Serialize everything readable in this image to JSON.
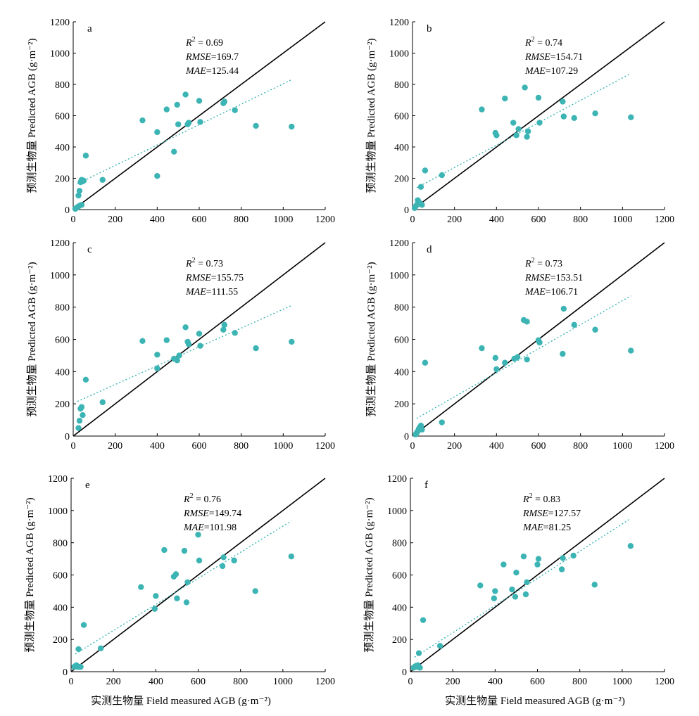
{
  "colors": {
    "points": "#3db4b4",
    "fit_line": "#3db4b4",
    "one_to_one": "#000000",
    "axes": "#000000"
  },
  "y_axis_label": "预测生物量 Predicted AGB (g·m⁻²)",
  "x_axis_label": "实测生物量 Field measured AGB (g·m⁻²)",
  "chart_data": [
    {
      "type": "scatter",
      "panel": "a",
      "stats": {
        "r2": "R² = 0.69",
        "rmse": "RMSE=169.7",
        "mae": "MAE=125.44"
      },
      "xlim": [
        0,
        1200
      ],
      "ylim": [
        0,
        1200
      ],
      "xticks": [
        0,
        200,
        400,
        600,
        800,
        1000,
        1200
      ],
      "yticks": [
        0,
        200,
        400,
        600,
        800,
        1000,
        1200
      ],
      "fit_line": [
        [
          20,
          165
        ],
        [
          1040,
          830
        ]
      ],
      "points": [
        [
          10,
          5
        ],
        [
          15,
          10
        ],
        [
          20,
          15
        ],
        [
          25,
          20
        ],
        [
          30,
          25
        ],
        [
          40,
          30
        ],
        [
          25,
          90
        ],
        [
          30,
          120
        ],
        [
          35,
          175
        ],
        [
          40,
          190
        ],
        [
          45,
          180
        ],
        [
          50,
          185
        ],
        [
          60,
          345
        ],
        [
          140,
          190
        ],
        [
          330,
          570
        ],
        [
          400,
          215
        ],
        [
          400,
          495
        ],
        [
          445,
          640
        ],
        [
          480,
          370
        ],
        [
          495,
          670
        ],
        [
          500,
          545
        ],
        [
          535,
          735
        ],
        [
          545,
          545
        ],
        [
          550,
          555
        ],
        [
          600,
          695
        ],
        [
          605,
          560
        ],
        [
          715,
          680
        ],
        [
          720,
          690
        ],
        [
          770,
          635
        ],
        [
          870,
          535
        ],
        [
          1040,
          530
        ]
      ]
    },
    {
      "type": "scatter",
      "panel": "b",
      "stats": {
        "r2": "R² = 0.74",
        "rmse": "RMSE=154.71",
        "mae": "MAE=107.29"
      },
      "xlim": [
        0,
        1200
      ],
      "ylim": [
        0,
        1200
      ],
      "xticks": [
        0,
        200,
        400,
        600,
        800,
        1000,
        1200
      ],
      "yticks": [
        0,
        200,
        400,
        600,
        800,
        1000,
        1200
      ],
      "fit_line": [
        [
          20,
          140
        ],
        [
          1040,
          870
        ]
      ],
      "points": [
        [
          10,
          10
        ],
        [
          15,
          20
        ],
        [
          20,
          30
        ],
        [
          25,
          60
        ],
        [
          30,
          50
        ],
        [
          35,
          40
        ],
        [
          40,
          35
        ],
        [
          45,
          30
        ],
        [
          40,
          145
        ],
        [
          60,
          250
        ],
        [
          140,
          220
        ],
        [
          330,
          640
        ],
        [
          395,
          490
        ],
        [
          400,
          475
        ],
        [
          440,
          710
        ],
        [
          480,
          555
        ],
        [
          495,
          475
        ],
        [
          505,
          515
        ],
        [
          535,
          780
        ],
        [
          545,
          465
        ],
        [
          550,
          500
        ],
        [
          600,
          715
        ],
        [
          605,
          555
        ],
        [
          715,
          690
        ],
        [
          720,
          595
        ],
        [
          770,
          585
        ],
        [
          870,
          615
        ],
        [
          1040,
          590
        ]
      ]
    },
    {
      "type": "scatter",
      "panel": "c",
      "stats": {
        "r2": "R² = 0.73",
        "rmse": "RMSE=155.75",
        "mae": "MAE=111.55"
      },
      "xlim": [
        0,
        1200
      ],
      "ylim": [
        0,
        1200
      ],
      "xticks": [
        0,
        200,
        400,
        600,
        800,
        1000,
        1200
      ],
      "yticks": [
        0,
        200,
        400,
        600,
        800,
        1000,
        1200
      ],
      "fit_line": [
        [
          20,
          215
        ],
        [
          1040,
          810
        ]
      ],
      "points": [
        [
          25,
          50
        ],
        [
          30,
          95
        ],
        [
          35,
          170
        ],
        [
          40,
          180
        ],
        [
          45,
          130
        ],
        [
          60,
          350
        ],
        [
          140,
          210
        ],
        [
          330,
          590
        ],
        [
          400,
          420
        ],
        [
          400,
          505
        ],
        [
          445,
          595
        ],
        [
          480,
          480
        ],
        [
          495,
          470
        ],
        [
          505,
          500
        ],
        [
          535,
          675
        ],
        [
          545,
          585
        ],
        [
          550,
          570
        ],
        [
          600,
          635
        ],
        [
          605,
          560
        ],
        [
          715,
          660
        ],
        [
          720,
          690
        ],
        [
          770,
          640
        ],
        [
          870,
          545
        ],
        [
          1040,
          585
        ]
      ]
    },
    {
      "type": "scatter",
      "panel": "d",
      "stats": {
        "r2": "R² = 0.73",
        "rmse": "RMSE=153.51",
        "mae": "MAE=106.71"
      },
      "xlim": [
        0,
        1200
      ],
      "ylim": [
        0,
        1200
      ],
      "xticks": [
        0,
        200,
        400,
        600,
        800,
        1000,
        1200
      ],
      "yticks": [
        0,
        200,
        400,
        600,
        800,
        1000,
        1200
      ],
      "fit_line": [
        [
          20,
          110
        ],
        [
          1040,
          870
        ]
      ],
      "points": [
        [
          15,
          10
        ],
        [
          20,
          20
        ],
        [
          25,
          30
        ],
        [
          30,
          45
        ],
        [
          35,
          55
        ],
        [
          40,
          65
        ],
        [
          45,
          40
        ],
        [
          60,
          455
        ],
        [
          140,
          85
        ],
        [
          330,
          545
        ],
        [
          395,
          485
        ],
        [
          400,
          415
        ],
        [
          440,
          455
        ],
        [
          485,
          480
        ],
        [
          500,
          490
        ],
        [
          530,
          720
        ],
        [
          545,
          475
        ],
        [
          545,
          710
        ],
        [
          600,
          595
        ],
        [
          605,
          580
        ],
        [
          715,
          510
        ],
        [
          720,
          790
        ],
        [
          770,
          690
        ],
        [
          870,
          660
        ],
        [
          1040,
          530
        ]
      ]
    },
    {
      "type": "scatter",
      "panel": "e",
      "stats": {
        "r2": "R² = 0.76",
        "rmse": "RMSE=149.74",
        "mae": "MAE=101.98"
      },
      "xlim": [
        0,
        1200
      ],
      "ylim": [
        0,
        1200
      ],
      "xticks": [
        0,
        200,
        400,
        600,
        800,
        1000,
        1200
      ],
      "yticks": [
        0,
        200,
        400,
        600,
        800,
        1000,
        1200
      ],
      "fit_line": [
        [
          20,
          110
        ],
        [
          1040,
          935
        ]
      ],
      "points": [
        [
          15,
          30
        ],
        [
          20,
          35
        ],
        [
          25,
          40
        ],
        [
          30,
          30
        ],
        [
          40,
          30
        ],
        [
          45,
          30
        ],
        [
          35,
          140
        ],
        [
          60,
          290
        ],
        [
          140,
          145
        ],
        [
          330,
          525
        ],
        [
          395,
          390
        ],
        [
          400,
          470
        ],
        [
          440,
          755
        ],
        [
          485,
          590
        ],
        [
          495,
          605
        ],
        [
          500,
          455
        ],
        [
          535,
          750
        ],
        [
          545,
          430
        ],
        [
          550,
          555
        ],
        [
          600,
          850
        ],
        [
          605,
          690
        ],
        [
          715,
          655
        ],
        [
          720,
          710
        ],
        [
          770,
          690
        ],
        [
          870,
          500
        ],
        [
          1040,
          715
        ]
      ]
    },
    {
      "type": "scatter",
      "panel": "f",
      "stats": {
        "r2": "R² = 0.83",
        "rmse": "RMSE=127.57",
        "mae": "MAE=81.25"
      },
      "xlim": [
        0,
        1200
      ],
      "ylim": [
        0,
        1200
      ],
      "xticks": [
        0,
        200,
        400,
        600,
        800,
        1000,
        1200
      ],
      "yticks": [
        0,
        200,
        400,
        600,
        800,
        1000,
        1200
      ],
      "fit_line": [
        [
          20,
          90
        ],
        [
          1040,
          950
        ]
      ],
      "points": [
        [
          15,
          25
        ],
        [
          20,
          30
        ],
        [
          25,
          35
        ],
        [
          30,
          30
        ],
        [
          35,
          40
        ],
        [
          45,
          25
        ],
        [
          40,
          115
        ],
        [
          60,
          320
        ],
        [
          140,
          160
        ],
        [
          330,
          535
        ],
        [
          395,
          455
        ],
        [
          400,
          500
        ],
        [
          440,
          665
        ],
        [
          480,
          510
        ],
        [
          495,
          465
        ],
        [
          500,
          615
        ],
        [
          535,
          715
        ],
        [
          545,
          480
        ],
        [
          550,
          555
        ],
        [
          600,
          665
        ],
        [
          605,
          700
        ],
        [
          715,
          635
        ],
        [
          720,
          705
        ],
        [
          770,
          720
        ],
        [
          870,
          540
        ],
        [
          1040,
          780
        ]
      ]
    }
  ]
}
